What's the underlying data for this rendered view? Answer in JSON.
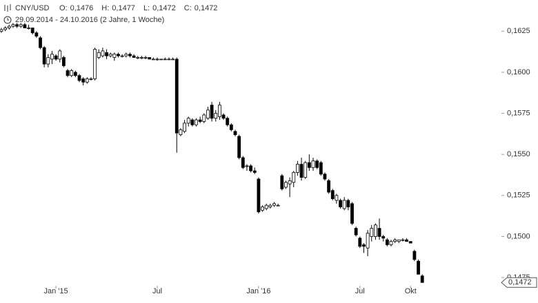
{
  "header": {
    "symbol": "CNY/USD",
    "ohlc": [
      {
        "label": "O:",
        "value": "0,1476"
      },
      {
        "label": "H:",
        "value": "0,1477"
      },
      {
        "label": "L:",
        "value": "0,1472"
      },
      {
        "label": "C:",
        "value": "0,1472"
      }
    ],
    "range": "29.09.2014 - 24.10.2016 (2 Jahre, 1 Woche)"
  },
  "chart_data": {
    "type": "candlestick",
    "ylim": [
      0.147,
      0.1644
    ],
    "yticks": [
      {
        "value": 0.1475,
        "label": "0,1475"
      },
      {
        "value": 0.15,
        "label": "0,1500"
      },
      {
        "value": 0.1525,
        "label": "0,1525"
      },
      {
        "value": 0.155,
        "label": "0,1550"
      },
      {
        "value": 0.1575,
        "label": "0,1575"
      },
      {
        "value": 0.16,
        "label": "0,1600"
      },
      {
        "value": 0.1625,
        "label": "0,1625"
      }
    ],
    "xticks": [
      {
        "value": 14,
        "label": "Jan '15"
      },
      {
        "value": 40,
        "label": "Jul"
      },
      {
        "value": 66,
        "label": "Jan '16"
      },
      {
        "value": 92,
        "label": "Jul"
      },
      {
        "value": 105,
        "label": "Okt"
      }
    ],
    "last_price_label": "0,1472",
    "up_color": "#ffffff",
    "down_color": "#000000",
    "candles": [
      [
        0.1625,
        0.1627,
        0.1624,
        0.1626
      ],
      [
        0.1626,
        0.1628,
        0.1625,
        0.1627
      ],
      [
        0.1627,
        0.1629,
        0.1626,
        0.1628
      ],
      [
        0.1628,
        0.163,
        0.1627,
        0.1629
      ],
      [
        0.1629,
        0.163,
        0.1627,
        0.1628
      ],
      [
        0.1628,
        0.163,
        0.1627,
        0.1629
      ],
      [
        0.1629,
        0.163,
        0.1627,
        0.1627
      ],
      [
        0.1627,
        0.1629,
        0.1626,
        0.1627
      ],
      [
        0.1627,
        0.1627,
        0.1623,
        0.1624
      ],
      [
        0.1624,
        0.1625,
        0.1621,
        0.1622
      ],
      [
        0.1621,
        0.1622,
        0.1614,
        0.1615
      ],
      [
        0.1615,
        0.1616,
        0.1603,
        0.1605
      ],
      [
        0.1605,
        0.1611,
        0.1603,
        0.1609
      ],
      [
        0.1608,
        0.1613,
        0.1605,
        0.1611
      ],
      [
        0.161,
        0.1611,
        0.1607,
        0.1608
      ],
      [
        0.1608,
        0.1614,
        0.1606,
        0.1613
      ],
      [
        0.1609,
        0.161,
        0.1603,
        0.1604
      ],
      [
        0.1601,
        0.1602,
        0.1597,
        0.1598
      ],
      [
        0.1598,
        0.1602,
        0.1597,
        0.1601
      ],
      [
        0.16,
        0.1601,
        0.1597,
        0.1598
      ],
      [
        0.1598,
        0.1599,
        0.1594,
        0.1595
      ],
      [
        0.1596,
        0.1597,
        0.1592,
        0.1594
      ],
      [
        0.1594,
        0.1597,
        0.1593,
        0.1596
      ],
      [
        0.1596,
        0.1597,
        0.1595,
        0.1596
      ],
      [
        0.1596,
        0.1615,
        0.1595,
        0.1614
      ],
      [
        0.1609,
        0.1614,
        0.1608,
        0.1612
      ],
      [
        0.161,
        0.1615,
        0.1609,
        0.1613
      ],
      [
        0.1612,
        0.1614,
        0.1608,
        0.161
      ],
      [
        0.161,
        0.1612,
        0.1609,
        0.1611
      ],
      [
        0.1609,
        0.1612,
        0.1607,
        0.1611
      ],
      [
        0.1611,
        0.1612,
        0.1609,
        0.161
      ],
      [
        0.161,
        0.1611,
        0.1609,
        0.161
      ],
      [
        0.161,
        0.1612,
        0.1609,
        0.1611
      ],
      [
        0.1611,
        0.1612,
        0.1609,
        0.161
      ],
      [
        0.161,
        0.1611,
        0.1609,
        0.1609
      ],
      [
        0.1609,
        0.161,
        0.1608,
        0.1609
      ],
      [
        0.1609,
        0.161,
        0.1608,
        0.1609
      ],
      [
        0.1609,
        0.161,
        0.1608,
        0.1609
      ],
      [
        0.1609,
        0.1609,
        0.1608,
        0.1608
      ],
      [
        0.1608,
        0.1609,
        0.1608,
        0.1608
      ],
      [
        0.1608,
        0.1609,
        0.1607,
        0.1608
      ],
      [
        0.1608,
        0.1608,
        0.1608,
        0.1608
      ],
      [
        0.1608,
        0.1609,
        0.1608,
        0.1608
      ],
      [
        0.1608,
        0.1609,
        0.1608,
        0.1608
      ],
      [
        0.1608,
        0.1609,
        0.1608,
        0.1608
      ],
      [
        0.1608,
        0.1609,
        0.1551,
        0.1563
      ],
      [
        0.1562,
        0.1566,
        0.1561,
        0.1565
      ],
      [
        0.1564,
        0.1571,
        0.1563,
        0.1569
      ],
      [
        0.1569,
        0.1573,
        0.1567,
        0.1572
      ],
      [
        0.1571,
        0.1572,
        0.1567,
        0.1568
      ],
      [
        0.1568,
        0.1572,
        0.1567,
        0.1571
      ],
      [
        0.1571,
        0.1573,
        0.1569,
        0.157
      ],
      [
        0.157,
        0.1575,
        0.1569,
        0.1574
      ],
      [
        0.1572,
        0.1579,
        0.1571,
        0.1577
      ],
      [
        0.158,
        0.1582,
        0.157,
        0.1572
      ],
      [
        0.1572,
        0.1577,
        0.157,
        0.1575
      ],
      [
        0.1573,
        0.1582,
        0.1571,
        0.158
      ],
      [
        0.1574,
        0.1575,
        0.1571,
        0.1572
      ],
      [
        0.1572,
        0.1573,
        0.1567,
        0.1568
      ],
      [
        0.1568,
        0.1569,
        0.1564,
        0.1565
      ],
      [
        0.1564,
        0.1565,
        0.1561,
        0.1562
      ],
      [
        0.1561,
        0.1562,
        0.1547,
        0.1548
      ],
      [
        0.1548,
        0.1549,
        0.1541,
        0.1542
      ],
      [
        0.1543,
        0.1544,
        0.154,
        0.1543
      ],
      [
        0.1543,
        0.1544,
        0.1539,
        0.154
      ],
      [
        0.154,
        0.1542,
        0.1538,
        0.1539
      ],
      [
        0.1535,
        0.1536,
        0.1514,
        0.1515
      ],
      [
        0.1516,
        0.1519,
        0.1515,
        0.1518
      ],
      [
        0.1517,
        0.152,
        0.1516,
        0.1519
      ],
      [
        0.1518,
        0.152,
        0.1517,
        0.1519
      ],
      [
        0.1519,
        0.1521,
        0.1518,
        0.152
      ],
      [
        0.1519,
        0.152,
        0.1519,
        0.1519
      ],
      [
        0.1537,
        0.1538,
        0.1528,
        0.1529
      ],
      [
        0.153,
        0.1534,
        0.1529,
        0.1533
      ],
      [
        0.1532,
        0.1536,
        0.1524,
        0.1534
      ],
      [
        0.1533,
        0.154,
        0.153,
        0.1539
      ],
      [
        0.1539,
        0.1546,
        0.1537,
        0.1544
      ],
      [
        0.1544,
        0.1548,
        0.1534,
        0.1536
      ],
      [
        0.1536,
        0.1546,
        0.1535,
        0.1545
      ],
      [
        0.1545,
        0.155,
        0.154,
        0.1542
      ],
      [
        0.1542,
        0.1548,
        0.154,
        0.1546
      ],
      [
        0.1546,
        0.1547,
        0.1541,
        0.1542
      ],
      [
        0.1545,
        0.1546,
        0.1537,
        0.1538
      ],
      [
        0.1538,
        0.1539,
        0.1534,
        0.1535
      ],
      [
        0.1534,
        0.1535,
        0.1526,
        0.1527
      ],
      [
        0.1528,
        0.1529,
        0.1522,
        0.1523
      ],
      [
        0.1522,
        0.1526,
        0.152,
        0.1525
      ],
      [
        0.1522,
        0.1523,
        0.1517,
        0.1518
      ],
      [
        0.1517,
        0.1524,
        0.1516,
        0.1522
      ],
      [
        0.1522,
        0.1523,
        0.1516,
        0.1518
      ],
      [
        0.152,
        0.1521,
        0.1507,
        0.1508
      ],
      [
        0.1505,
        0.1506,
        0.15,
        0.1501
      ],
      [
        0.1499,
        0.15,
        0.1493,
        0.1494
      ],
      [
        0.1495,
        0.1496,
        0.149,
        0.1494
      ],
      [
        0.1493,
        0.1504,
        0.1488,
        0.1502
      ],
      [
        0.15,
        0.1507,
        0.1497,
        0.1505
      ],
      [
        0.15,
        0.1508,
        0.1498,
        0.1507
      ],
      [
        0.1505,
        0.1511,
        0.1498,
        0.15
      ],
      [
        0.15,
        0.1501,
        0.1497,
        0.1499
      ],
      [
        0.1498,
        0.1499,
        0.1494,
        0.1495
      ],
      [
        0.1495,
        0.1498,
        0.1494,
        0.1497
      ],
      [
        0.1497,
        0.1499,
        0.1496,
        0.1498
      ],
      [
        0.1497,
        0.1498,
        0.1496,
        0.1498
      ],
      [
        0.1498,
        0.1499,
        0.1497,
        0.1498
      ],
      [
        0.1498,
        0.1499,
        0.1497,
        0.1497
      ],
      [
        0.1497,
        0.1497,
        0.1496,
        0.1496
      ],
      [
        0.1491,
        0.1492,
        0.1485,
        0.1486
      ],
      [
        0.1485,
        0.1486,
        0.1477,
        0.1477
      ],
      [
        0.1476,
        0.1477,
        0.1472,
        0.1472
      ]
    ]
  }
}
